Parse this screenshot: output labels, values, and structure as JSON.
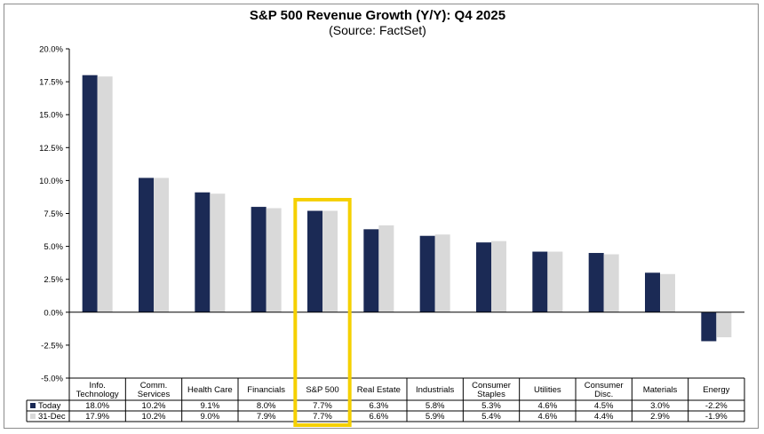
{
  "chart_data": {
    "type": "bar",
    "title": "S&P 500 Revenue Growth (Y/Y):  Q4 2025",
    "subtitle": "(Source: FactSet)",
    "categories": [
      "Info. Technology",
      "Comm. Services",
      "Health Care",
      "Financials",
      "S&P 500",
      "Real Estate",
      "Industrials",
      "Consumer Staples",
      "Utilities",
      "Consumer Disc.",
      "Materials",
      "Energy"
    ],
    "category_lines": [
      [
        "Info.",
        "Technology"
      ],
      [
        "Comm.",
        "Services"
      ],
      [
        "Health Care"
      ],
      [
        "Financials"
      ],
      [
        "S&P 500"
      ],
      [
        "Real Estate"
      ],
      [
        "Industrials"
      ],
      [
        "Consumer",
        "Staples"
      ],
      [
        "Utilities"
      ],
      [
        "Consumer",
        "Disc."
      ],
      [
        "Materials"
      ],
      [
        "Energy"
      ]
    ],
    "series": [
      {
        "name": "Today",
        "color": "#1b2a55",
        "values": [
          18.0,
          10.2,
          9.1,
          8.0,
          7.7,
          6.3,
          5.8,
          5.3,
          4.6,
          4.5,
          3.0,
          -2.2
        ],
        "labels": [
          "18.0%",
          "10.2%",
          "9.1%",
          "8.0%",
          "7.7%",
          "6.3%",
          "5.8%",
          "5.3%",
          "4.6%",
          "4.5%",
          "3.0%",
          "-2.2%"
        ]
      },
      {
        "name": "31-Dec",
        "color": "#d9d9d9",
        "values": [
          17.9,
          10.2,
          9.0,
          7.9,
          7.7,
          6.6,
          5.9,
          5.4,
          4.6,
          4.4,
          2.9,
          -1.9
        ],
        "labels": [
          "17.9%",
          "10.2%",
          "9.0%",
          "7.9%",
          "7.7%",
          "6.6%",
          "5.9%",
          "5.4%",
          "4.6%",
          "4.4%",
          "2.9%",
          "-1.9%"
        ]
      }
    ],
    "ylim": [
      -5,
      20
    ],
    "yticks": [
      "20.0%",
      "17.5%",
      "15.0%",
      "12.5%",
      "10.0%",
      "7.5%",
      "5.0%",
      "2.5%",
      "0.0%",
      "-2.5%",
      "-5.0%"
    ],
    "ytick_values": [
      20,
      17.5,
      15,
      12.5,
      10,
      7.5,
      5,
      2.5,
      0,
      -2.5,
      -5
    ],
    "highlight_category": "S&P 500",
    "highlight_color": "#f5d000",
    "legend_placement": "data-table-left",
    "grid": false
  }
}
